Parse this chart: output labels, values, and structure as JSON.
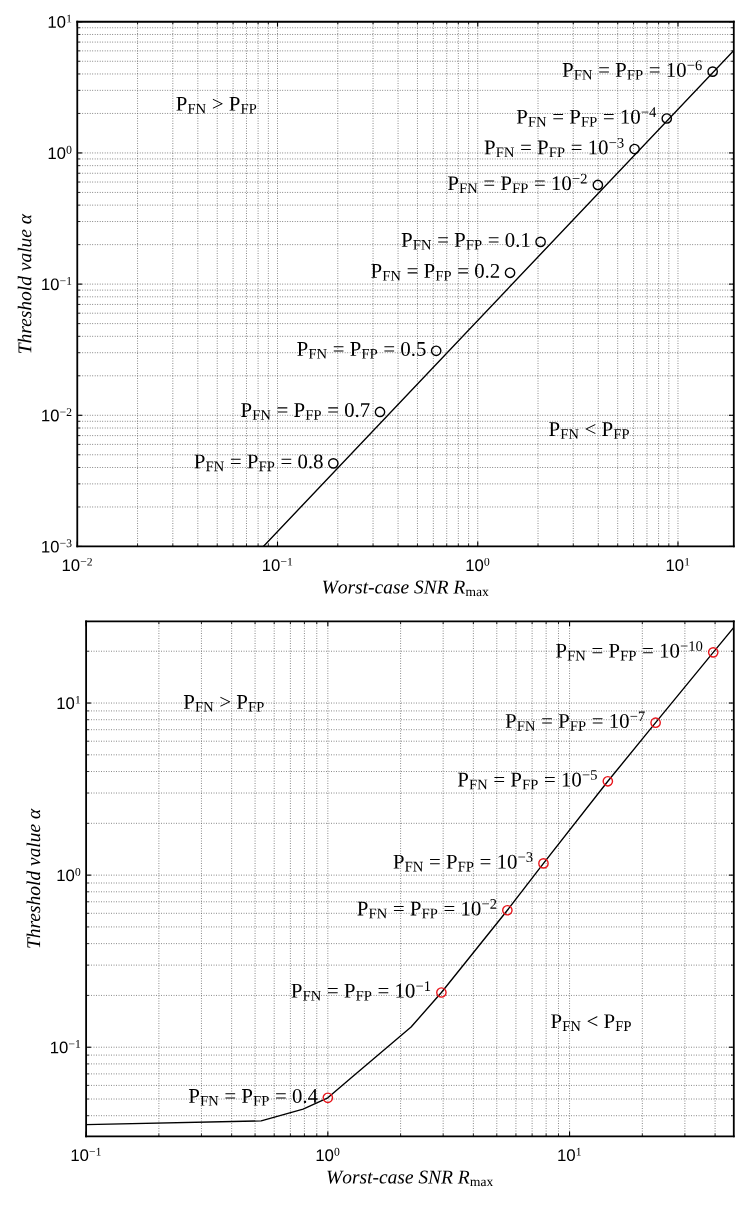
{
  "chart_data": [
    {
      "type": "line",
      "xlabel": "Worst-case SNR R$_{max}$",
      "ylabel": "Threshold value α",
      "log": "xy",
      "grid": true,
      "xlim": [
        0.01,
        19
      ],
      "ylim": [
        0.001,
        10
      ],
      "xticks": [
        {
          "value": 0.01,
          "label": "10$^{−2}$"
        },
        {
          "value": 0.1,
          "label": "10$^{−1}$"
        },
        {
          "value": 1,
          "label": "10$^{0}$"
        },
        {
          "value": 10,
          "label": "10$^{1}$"
        }
      ],
      "yticks": [
        {
          "value": 0.001,
          "label": "10$^{−3}$"
        },
        {
          "value": 0.01,
          "label": "10$^{−2}$"
        },
        {
          "value": 0.1,
          "label": "10$^{−1}$"
        },
        {
          "value": 1,
          "label": "10$^{0}$"
        },
        {
          "value": 10,
          "label": "10$^{1}$"
        }
      ],
      "series": [
        {
          "color": "#000000",
          "marker": "none",
          "x": [
            0.085,
            19
          ],
          "values": [
            0.001,
            6.04
          ]
        },
        {
          "type": "scatter",
          "color": "#000000",
          "marker": "circle",
          "x": [
            0.19,
            0.325,
            0.62,
            1.45,
            2.06,
            3.98,
            6.07,
            8.79,
            14.9
          ],
          "values": [
            0.0043,
            0.0106,
            0.031,
            0.122,
            0.21,
            0.57,
            1.07,
            1.83,
            4.17
          ]
        }
      ],
      "annotations": [
        "P$_{FN}$ > P$_{FP}$",
        "P$_{FN}$ < P$_{FP}$",
        {
          "text": "P$_{FN}$ = P$_{FP}$ = 0.8",
          "x": 0.19,
          "y": 0.0043
        },
        {
          "text": "P$_{FN}$ = P$_{FP}$ = 0.7",
          "x": 0.325,
          "y": 0.0106
        },
        {
          "text": "P$_{FN}$ = P$_{FP}$ = 0.5",
          "x": 0.62,
          "y": 0.031
        },
        {
          "text": "P$_{FN}$ = P$_{FP}$ = 0.2",
          "x": 1.45,
          "y": 0.122
        },
        {
          "text": "P$_{FN}$ = P$_{FP}$ = 0.1",
          "x": 2.06,
          "y": 0.21
        },
        {
          "text": "P$_{FN}$ = P$_{FP}$ = 10$^{−2}$",
          "x": 3.98,
          "y": 0.57
        },
        {
          "text": "P$_{FN}$ = P$_{FP}$ = 10$^{−3}$",
          "x": 6.07,
          "y": 1.07
        },
        {
          "text": "P$_{FN}$ = P$_{FP}$ = 10$^{−4}$",
          "x": 8.79,
          "y": 1.83
        },
        {
          "text": "P$_{FN}$ = P$_{FP}$ = 10$^{−6}$",
          "x": 14.9,
          "y": 4.17
        }
      ]
    },
    {
      "type": "line",
      "xlabel": "Worst-case SNR R$_{max}$",
      "ylabel": "Threshold value α",
      "log": "xy",
      "grid": true,
      "xlim": [
        0.1,
        47.8
      ],
      "ylim": [
        0.0303,
        29.8
      ],
      "xticks": [
        {
          "value": 0.1,
          "label": "10$^{−1}$"
        },
        {
          "value": 1,
          "label": "10$^{0}$"
        },
        {
          "value": 10,
          "label": "10$^{1}$"
        }
      ],
      "yticks": [
        {
          "value": 0.1,
          "label": "10$^{−1}$"
        },
        {
          "value": 1,
          "label": "10$^{0}$"
        },
        {
          "value": 10,
          "label": "10$^{1}$"
        }
      ],
      "series": [
        {
          "color": "#000000",
          "marker": "none",
          "x": [
            0.1,
            0.53,
            0.79,
            1,
            1.25,
            2.21,
            2.95,
            5.53,
            7.8,
            14.4,
            22.7,
            39.3,
            47.8
          ],
          "values": [
            0.0355,
            0.0373,
            0.0437,
            0.0508,
            0.0665,
            0.131,
            0.208,
            0.625,
            1.17,
            3.51,
            7.69,
            19.7,
            27.5
          ]
        },
        {
          "type": "scatter",
          "color": "#e8151b",
          "marker": "circle",
          "x": [
            1,
            2.95,
            5.53,
            7.8,
            14.4,
            22.7,
            39.3
          ],
          "values": [
            0.0508,
            0.208,
            0.625,
            1.17,
            3.51,
            7.69,
            19.7
          ]
        }
      ],
      "annotations": [
        "P$_{FN}$ > P$_{FP}$",
        "P$_{FN}$ < P$_{FP}$",
        {
          "text": "P$_{FN}$ = P$_{FP}$ = 0.4",
          "x": 1,
          "y": 0.0508
        },
        {
          "text": "P$_{FN}$ = P$_{FP}$ = 10$^{−1}$",
          "x": 2.95,
          "y": 0.208
        },
        {
          "text": "P$_{FN}$ = P$_{FP}$ = 10$^{−2}$",
          "x": 5.53,
          "y": 0.625
        },
        {
          "text": "P$_{FN}$ = P$_{FP}$ = 10$^{−3}$",
          "x": 7.8,
          "y": 1.17
        },
        {
          "text": "P$_{FN}$ = P$_{FP}$ = 10$^{−5}$",
          "x": 14.4,
          "y": 3.51
        },
        {
          "text": "P$_{FN}$ = P$_{FP}$ = 10$^{−7}$",
          "x": 22.7,
          "y": 7.69
        },
        {
          "text": "P$_{FN}$ = P$_{FP}$ = 10$^{−10}$",
          "x": 39.3,
          "y": 19.7
        }
      ]
    }
  ]
}
